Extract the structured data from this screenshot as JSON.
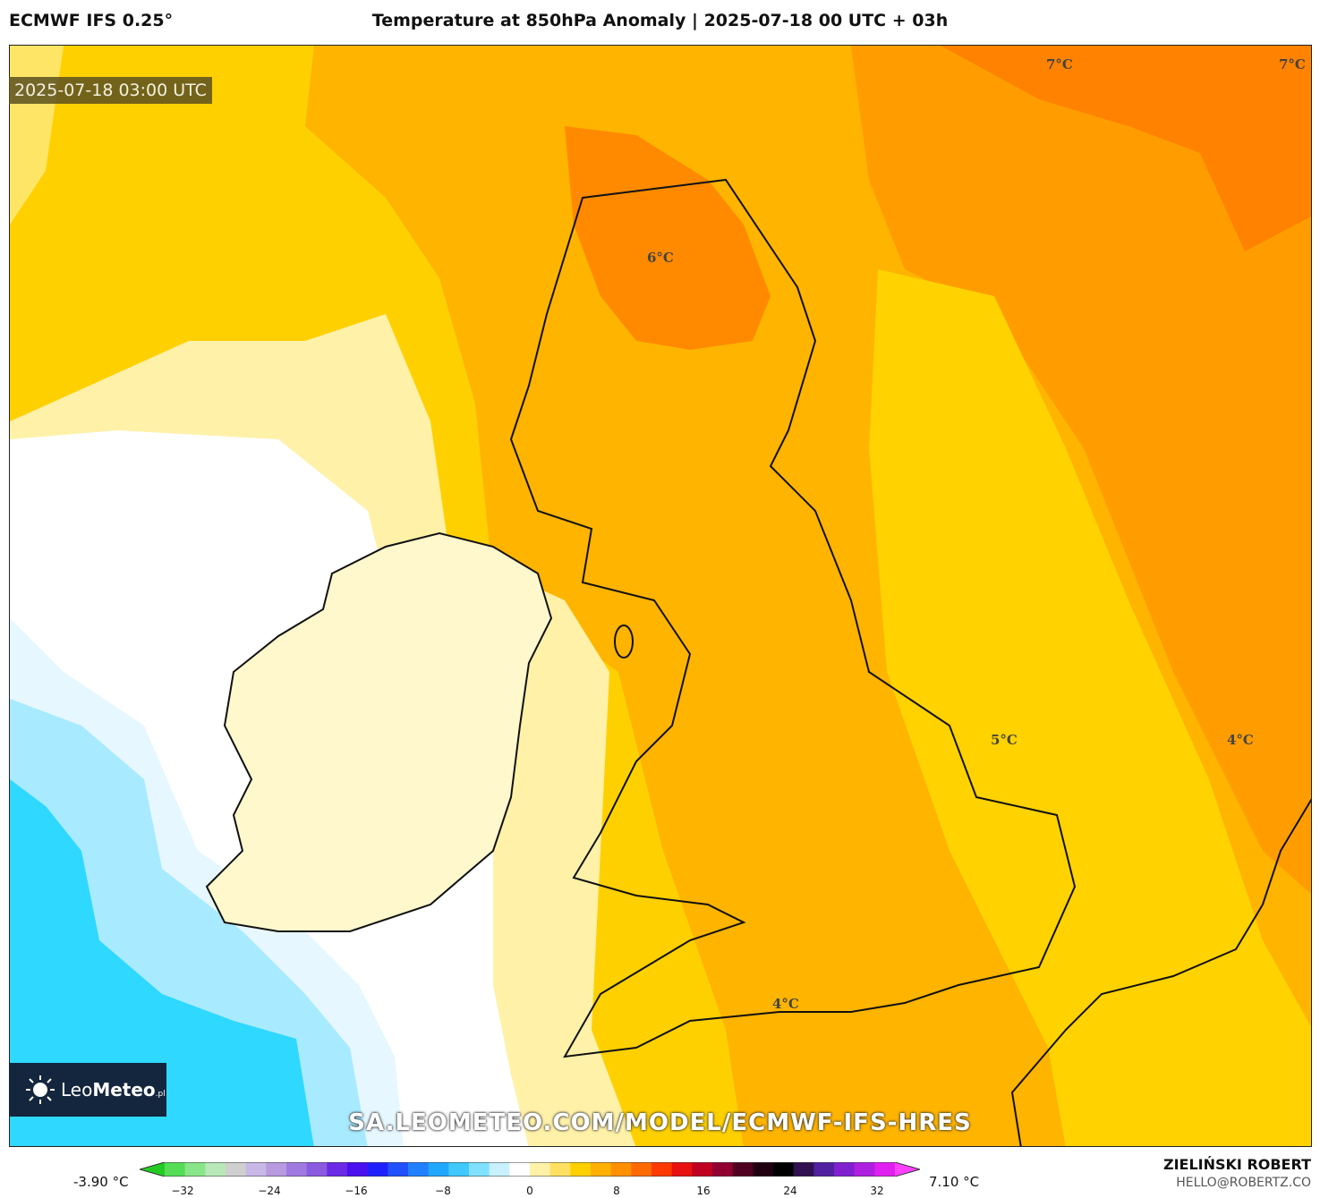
{
  "header": {
    "model": "ECMWF IFS 0.25°",
    "title": "Temperature at 850hPa Anomaly | 2025-07-18 00 UTC + 03h"
  },
  "map": {
    "valid_time": "2025-07-18 03:00 UTC",
    "contour_labels": [
      {
        "text": "7°C"
      },
      {
        "text": "7°C"
      },
      {
        "text": "6°C"
      },
      {
        "text": "5°C"
      },
      {
        "text": "4°C"
      },
      {
        "text": "4°C"
      }
    ],
    "watermark": "SA.LEOMETEO.COM/MODEL/ECMWF-IFS-HRES"
  },
  "logo": {
    "brand_light": "Leo",
    "brand_bold": "Meteo",
    "suffix": ".pl"
  },
  "colorbar": {
    "min_label": "-3.90 °C",
    "max_label": "7.10 °C",
    "ticks": [
      "−32",
      "−24",
      "−16",
      "−8",
      "0",
      "8",
      "16",
      "24",
      "32"
    ],
    "colors": [
      "#22cc22",
      "#55dd55",
      "#88e688",
      "#b8e8b8",
      "#cfcfcf",
      "#c8b8e8",
      "#b79ae0",
      "#a07ae0",
      "#8a5ae0",
      "#6a2ae6",
      "#4a10ee",
      "#2020ff",
      "#2050ff",
      "#2080ff",
      "#20a8ff",
      "#40c8ff",
      "#80e0ff",
      "#c8f0ff",
      "#ffffff",
      "#fff2a8",
      "#ffe060",
      "#ffd000",
      "#ffb000",
      "#ff9000",
      "#ff6a00",
      "#ff3a00",
      "#e81010",
      "#c00020",
      "#900030",
      "#500020",
      "#200010",
      "#000000",
      "#301050",
      "#5020a0",
      "#8020d0",
      "#b020e0",
      "#e020f0",
      "#ff40ff"
    ]
  },
  "credits": {
    "author": "ZIELIŃSKI ROBERT",
    "email": "HELLO@ROBERTZ.CO"
  }
}
